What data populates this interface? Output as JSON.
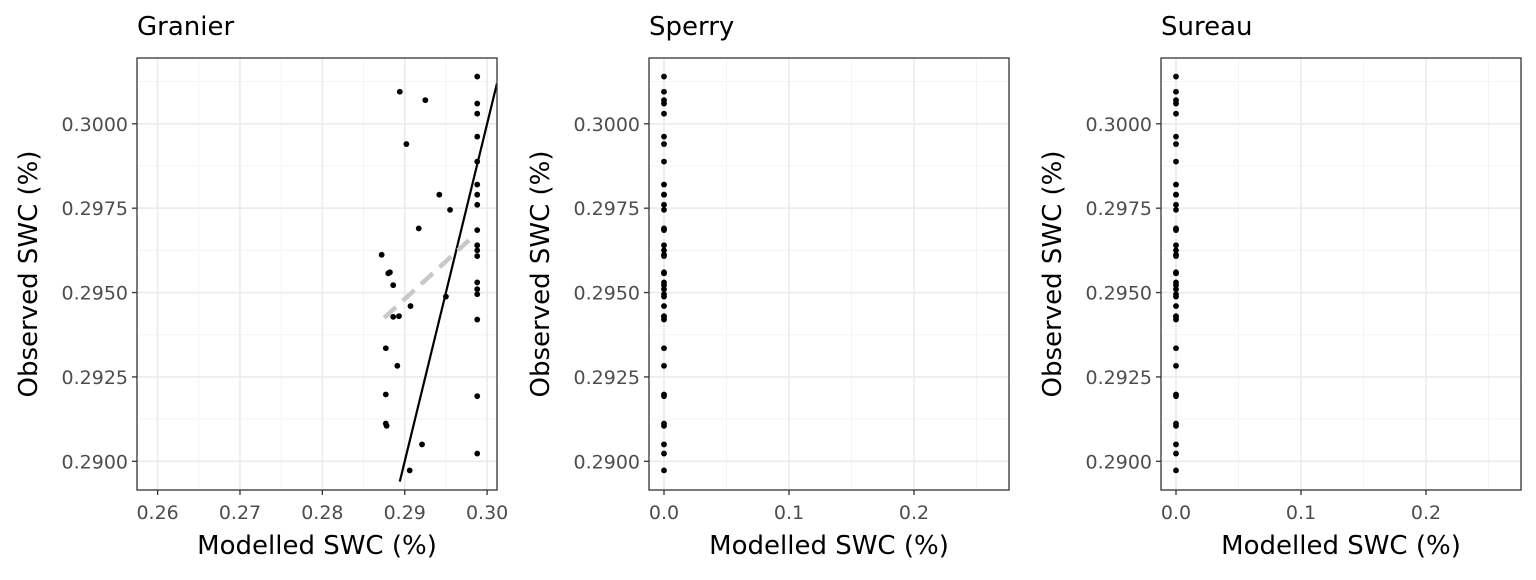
{
  "chart_data": [
    {
      "type": "scatter",
      "title": "Granier",
      "xlabel": "Modelled SWC (%)",
      "ylabel": "Observed SWC (%)",
      "xlim": [
        0.2575,
        0.3012
      ],
      "ylim": [
        0.28915,
        0.30195
      ],
      "x_ticks": [
        0.26,
        0.27,
        0.28,
        0.29,
        0.3
      ],
      "x_tick_labels": [
        "0.26",
        "0.27",
        "0.28",
        "0.29",
        "0.30"
      ],
      "y_ticks": [
        0.29,
        0.2925,
        0.295,
        0.2975,
        0.3
      ],
      "y_tick_labels": [
        "0.2900",
        "0.2925",
        "0.2950",
        "0.2975",
        "0.3000"
      ],
      "grid": true,
      "points": [
        {
          "x": 0.2894,
          "y": 0.30095
        },
        {
          "x": 0.2925,
          "y": 0.3007
        },
        {
          "x": 0.2902,
          "y": 0.2994
        },
        {
          "x": 0.2942,
          "y": 0.2979
        },
        {
          "x": 0.2955,
          "y": 0.29745
        },
        {
          "x": 0.2917,
          "y": 0.2969
        },
        {
          "x": 0.2872,
          "y": 0.29612
        },
        {
          "x": 0.288,
          "y": 0.29557
        },
        {
          "x": 0.2882,
          "y": 0.2956
        },
        {
          "x": 0.2886,
          "y": 0.29522
        },
        {
          "x": 0.295,
          "y": 0.29488
        },
        {
          "x": 0.2907,
          "y": 0.2946
        },
        {
          "x": 0.2886,
          "y": 0.29428
        },
        {
          "x": 0.2893,
          "y": 0.2943
        },
        {
          "x": 0.2877,
          "y": 0.29335
        },
        {
          "x": 0.2891,
          "y": 0.29283
        },
        {
          "x": 0.2877,
          "y": 0.29198
        },
        {
          "x": 0.2877,
          "y": 0.29112
        },
        {
          "x": 0.2878,
          "y": 0.29105
        },
        {
          "x": 0.2921,
          "y": 0.2905
        },
        {
          "x": 0.2906,
          "y": 0.28973
        },
        {
          "x": 0.2988,
          "y": 0.3014
        },
        {
          "x": 0.2988,
          "y": 0.3006
        },
        {
          "x": 0.2988,
          "y": 0.3003
        },
        {
          "x": 0.2988,
          "y": 0.29962
        },
        {
          "x": 0.2988,
          "y": 0.29888
        },
        {
          "x": 0.2988,
          "y": 0.2982
        },
        {
          "x": 0.2988,
          "y": 0.2979
        },
        {
          "x": 0.2988,
          "y": 0.2976
        },
        {
          "x": 0.2988,
          "y": 0.29685
        },
        {
          "x": 0.2988,
          "y": 0.2964
        },
        {
          "x": 0.2988,
          "y": 0.29625
        },
        {
          "x": 0.2988,
          "y": 0.29608
        },
        {
          "x": 0.2988,
          "y": 0.2953
        },
        {
          "x": 0.2988,
          "y": 0.2951
        },
        {
          "x": 0.2988,
          "y": 0.29495
        },
        {
          "x": 0.2988,
          "y": 0.2942
        },
        {
          "x": 0.2988,
          "y": 0.29193
        },
        {
          "x": 0.2988,
          "y": 0.29023
        }
      ],
      "lines": [
        {
          "kind": "identity",
          "style": "solid",
          "color": "#000000",
          "x": [
            0.2894,
            0.3012
          ],
          "y": [
            0.2894,
            0.3012
          ]
        },
        {
          "kind": "fit",
          "style": "dashed",
          "color": "#c8c8c8",
          "x": [
            0.2875,
            0.2978
          ],
          "y": [
            0.29425,
            0.29655
          ]
        }
      ]
    },
    {
      "type": "scatter",
      "title": "Sperry",
      "xlabel": "Modelled SWC (%)",
      "ylabel": "Observed SWC (%)",
      "xlim": [
        -0.012,
        0.276
      ],
      "ylim": [
        0.28915,
        0.30195
      ],
      "x_ticks": [
        0.0,
        0.1,
        0.2
      ],
      "x_tick_labels": [
        "0.0",
        "0.1",
        "0.2"
      ],
      "y_ticks": [
        0.29,
        0.2925,
        0.295,
        0.2975,
        0.3
      ],
      "y_tick_labels": [
        "0.2900",
        "0.2925",
        "0.2950",
        "0.2975",
        "0.3000"
      ],
      "grid": true,
      "points_x": 0.0,
      "points_y": [
        0.3014,
        0.30095,
        0.3007,
        0.3006,
        0.3003,
        0.29962,
        0.2994,
        0.29888,
        0.2982,
        0.2979,
        0.2979,
        0.2976,
        0.29745,
        0.2969,
        0.29685,
        0.2964,
        0.29625,
        0.29612,
        0.29608,
        0.2956,
        0.29557,
        0.2953,
        0.29522,
        0.2951,
        0.29495,
        0.29488,
        0.2946,
        0.2943,
        0.29428,
        0.2942,
        0.29335,
        0.29283,
        0.29198,
        0.29193,
        0.29112,
        0.29105,
        0.2905,
        0.29023,
        0.28973
      ]
    },
    {
      "type": "scatter",
      "title": "Sureau",
      "xlabel": "Modelled SWC (%)",
      "ylabel": "Observed SWC (%)",
      "xlim": [
        -0.012,
        0.276
      ],
      "ylim": [
        0.28915,
        0.30195
      ],
      "x_ticks": [
        0.0,
        0.1,
        0.2
      ],
      "x_tick_labels": [
        "0.0",
        "0.1",
        "0.2"
      ],
      "y_ticks": [
        0.29,
        0.2925,
        0.295,
        0.2975,
        0.3
      ],
      "y_tick_labels": [
        "0.2900",
        "0.2925",
        "0.2950",
        "0.2975",
        "0.3000"
      ],
      "grid": true,
      "points_x": 0.0,
      "points_y": [
        0.3014,
        0.30095,
        0.3007,
        0.3006,
        0.3003,
        0.29962,
        0.2994,
        0.29888,
        0.2982,
        0.2979,
        0.2979,
        0.2976,
        0.29745,
        0.2969,
        0.29685,
        0.2964,
        0.29625,
        0.29612,
        0.29608,
        0.2956,
        0.29557,
        0.2953,
        0.29522,
        0.2951,
        0.29495,
        0.29488,
        0.2946,
        0.2943,
        0.29428,
        0.2942,
        0.29335,
        0.29283,
        0.29198,
        0.29193,
        0.29112,
        0.29105,
        0.2905,
        0.29023,
        0.28973
      ]
    }
  ]
}
